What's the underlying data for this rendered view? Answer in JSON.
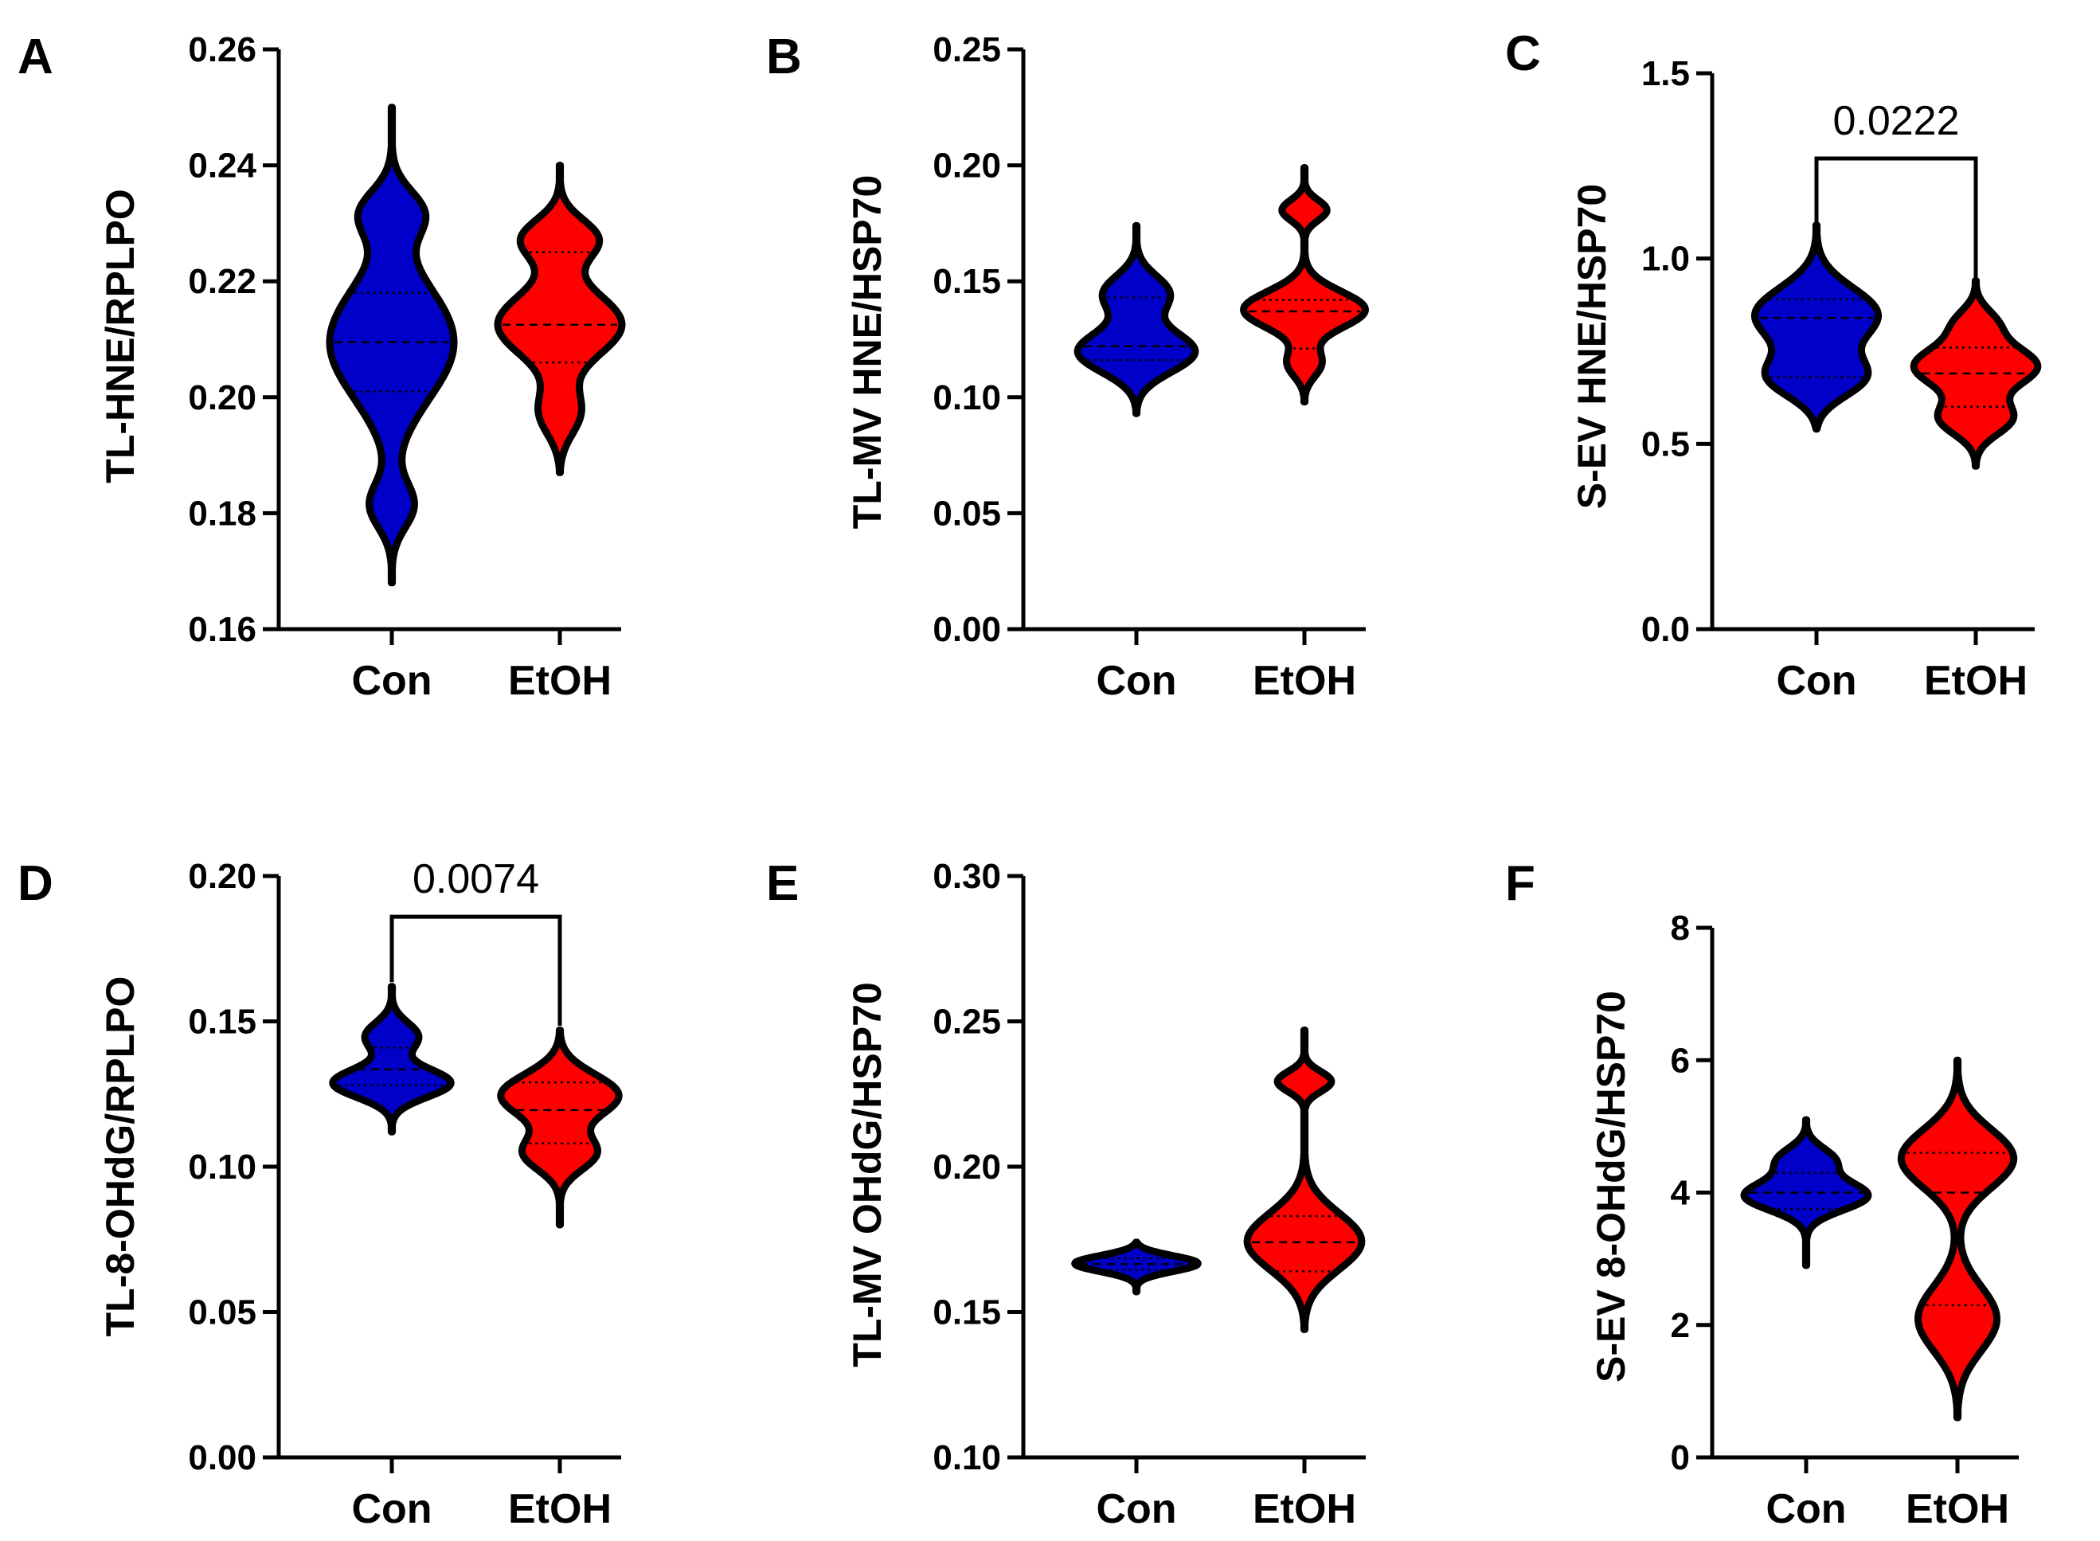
{
  "colors": {
    "con": "#0000c8",
    "etoh": "#ff0000",
    "outline": "#000000"
  },
  "chart_data": [
    {
      "type": "violin",
      "panel": "A",
      "ylabel": "TL-HNE/RPLPO",
      "ylim": [
        0.16,
        0.26
      ],
      "yticks": [
        "0.16",
        "0.18",
        "0.20",
        "0.22",
        "0.24",
        "0.26"
      ],
      "categories": [
        "Con",
        "EtOH"
      ],
      "series": [
        {
          "name": "Con",
          "min": 0.168,
          "max": 0.25,
          "q1": 0.201,
          "median": 0.2095,
          "q3": 0.218,
          "modes": [
            [
              0.2095,
              1.0,
              0.01
            ],
            [
              0.232,
              0.55,
              0.004
            ],
            [
              0.181,
              0.45,
              0.004
            ]
          ]
        },
        {
          "name": "EtOH",
          "min": 0.187,
          "max": 0.24,
          "q1": 0.206,
          "median": 0.2125,
          "q3": 0.225,
          "modes": [
            [
              0.2125,
              1.0,
              0.0055
            ],
            [
              0.2275,
              0.7,
              0.0035
            ],
            [
              0.197,
              0.4,
              0.004
            ]
          ]
        }
      ]
    },
    {
      "type": "violin",
      "panel": "B",
      "ylabel": "TL-MV HNE/HSP70",
      "ylim": [
        0.0,
        0.25
      ],
      "yticks": [
        "0.00",
        "0.05",
        "0.10",
        "0.15",
        "0.20",
        "0.25"
      ],
      "categories": [
        "Con",
        "EtOH"
      ],
      "series": [
        {
          "name": "Con",
          "min": 0.093,
          "max": 0.174,
          "q1": 0.116,
          "median": 0.122,
          "q3": 0.143,
          "modes": [
            [
              0.119,
              1.0,
              0.009
            ],
            [
              0.145,
              0.55,
              0.008
            ]
          ]
        },
        {
          "name": "EtOH",
          "min": 0.098,
          "max": 0.199,
          "q1": 0.121,
          "median": 0.137,
          "q3": 0.142,
          "modes": [
            [
              0.1375,
              1.0,
              0.008
            ],
            [
              0.181,
              0.45,
              0.0045
            ],
            [
              0.114,
              0.35,
              0.006
            ]
          ]
        }
      ]
    },
    {
      "type": "violin",
      "panel": "C",
      "ylabel": "S-EV HNE/HSP70",
      "ylim": [
        0.0,
        1.5
      ],
      "yticks": [
        "0.0",
        "0.5",
        "1.0",
        "1.5"
      ],
      "categories": [
        "Con",
        "EtOH"
      ],
      "series": [
        {
          "name": "Con",
          "min": 0.54,
          "max": 1.09,
          "q1": 0.68,
          "median": 0.84,
          "q3": 0.89,
          "modes": [
            [
              0.85,
              1.0,
              0.075
            ],
            [
              0.675,
              0.85,
              0.055
            ]
          ]
        },
        {
          "name": "EtOH",
          "min": 0.44,
          "max": 0.94,
          "q1": 0.6,
          "median": 0.69,
          "q3": 0.76,
          "modes": [
            [
              0.71,
              1.0,
              0.055
            ],
            [
              0.565,
              0.65,
              0.045
            ],
            [
              0.83,
              0.35,
              0.04
            ]
          ]
        }
      ],
      "annotation": {
        "text": "0.0222",
        "y": 1.27,
        "drop_to": [
          1.09,
          0.94
        ]
      }
    },
    {
      "type": "violin",
      "panel": "D",
      "ylabel": "TL-8-OHdG/RPLPO",
      "ylim": [
        0.0,
        0.2
      ],
      "yticks": [
        "0.00",
        "0.05",
        "0.10",
        "0.15",
        "0.20"
      ],
      "categories": [
        "Con",
        "EtOH"
      ],
      "series": [
        {
          "name": "Con",
          "min": 0.112,
          "max": 0.162,
          "q1": 0.128,
          "median": 0.1335,
          "q3": 0.141,
          "modes": [
            [
              0.1285,
              1.0,
              0.005
            ],
            [
              0.145,
              0.45,
              0.005
            ]
          ]
        },
        {
          "name": "EtOH",
          "min": 0.08,
          "max": 0.147,
          "q1": 0.108,
          "median": 0.1195,
          "q3": 0.129,
          "modes": [
            [
              0.125,
              1.0,
              0.0075
            ],
            [
              0.1045,
              0.6,
              0.006
            ]
          ]
        }
      ],
      "annotation": {
        "text": "0.0074",
        "y": 0.186,
        "drop_to": [
          0.1635,
          0.1485
        ]
      }
    },
    {
      "type": "violin",
      "panel": "E",
      "ylabel": "TL-MV OHdG/HSP70",
      "ylim": [
        0.1,
        0.3
      ],
      "yticks": [
        "0.10",
        "0.15",
        "0.20",
        "0.25",
        "0.30"
      ],
      "categories": [
        "Con",
        "EtOH"
      ],
      "series": [
        {
          "name": "Con",
          "min": 0.157,
          "max": 0.174,
          "q1": 0.1645,
          "median": 0.1665,
          "q3": 0.1685,
          "modes": [
            [
              0.1668,
              1.0,
              0.0028
            ]
          ]
        },
        {
          "name": "EtOH",
          "min": 0.144,
          "max": 0.247,
          "q1": 0.164,
          "median": 0.174,
          "q3": 0.183,
          "modes": [
            [
              0.1735,
              1.0,
              0.01
            ],
            [
              0.2295,
              0.55,
              0.0035
            ]
          ]
        }
      ]
    },
    {
      "type": "violin",
      "panel": "F",
      "ylabel": "S-EV 8-OHdG/HSP70",
      "ylim": [
        0,
        8
      ],
      "yticks": [
        "0",
        "2",
        "4",
        "6",
        "8"
      ],
      "categories": [
        "Con",
        "EtOH"
      ],
      "series": [
        {
          "name": "Con",
          "min": 2.9,
          "max": 5.1,
          "q1": 3.75,
          "median": 4.0,
          "q3": 4.3,
          "modes": [
            [
              3.95,
              1.0,
              0.22
            ],
            [
              4.5,
              0.5,
              0.2
            ]
          ]
        },
        {
          "name": "EtOH",
          "min": 0.6,
          "max": 6.0,
          "q1": 2.3,
          "median": 4.0,
          "q3": 4.6,
          "modes": [
            [
              4.55,
              1.0,
              0.45
            ],
            [
              2.05,
              0.7,
              0.5
            ]
          ]
        }
      ]
    }
  ]
}
